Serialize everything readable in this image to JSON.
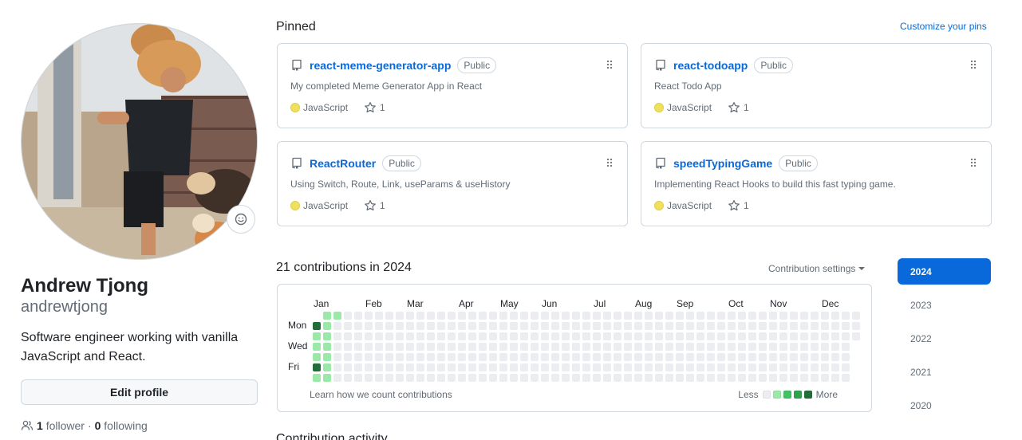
{
  "profile": {
    "full_name": "Andrew Tjong",
    "login": "andrewtjong",
    "bio": "Software engineer working with vanilla JavaScript and React.",
    "edit_label": "Edit profile",
    "followers_count": "1",
    "followers_label": "follower",
    "separator": "·",
    "following_count": "0",
    "following_label": "following"
  },
  "pinned": {
    "title": "Pinned",
    "customize_label": "Customize your pins",
    "repos": [
      {
        "name": "react-meme-generator-app",
        "visibility": "Public",
        "description": "My completed Meme Generator App in React",
        "language": "JavaScript",
        "stars": "1"
      },
      {
        "name": "react-todoapp",
        "visibility": "Public",
        "description": "React Todo App",
        "language": "JavaScript",
        "stars": "1"
      },
      {
        "name": "ReactRouter",
        "visibility": "Public",
        "description": "Using Switch, Route, Link, useParams & useHistory",
        "language": "JavaScript",
        "stars": "1"
      },
      {
        "name": "speedTypingGame",
        "visibility": "Public",
        "description": "Implementing React Hooks to build this fast typing game.",
        "language": "JavaScript",
        "stars": "1"
      }
    ],
    "language_color": "#f1e05a"
  },
  "contributions": {
    "title": "21 contributions in 2024",
    "settings_label": "Contribution settings",
    "months": [
      "Jan",
      "Feb",
      "Mar",
      "Apr",
      "May",
      "Jun",
      "Jul",
      "Aug",
      "Sep",
      "Oct",
      "Nov",
      "Dec"
    ],
    "weekdays": [
      "Mon",
      "Wed",
      "Fri"
    ],
    "learn_label": "Learn how we count contributions",
    "legend_less": "Less",
    "legend_more": "More",
    "level_colors": [
      "#ebedf0",
      "#9be9a8",
      "#40c463",
      "#30a14e",
      "#216e39"
    ],
    "weeks": 53,
    "year_starts_on_weekday": 1,
    "days_in_year": 366,
    "active_days": [
      {
        "week": 0,
        "day": 1,
        "level": 4
      },
      {
        "week": 0,
        "day": 2,
        "level": 1
      },
      {
        "week": 0,
        "day": 3,
        "level": 1
      },
      {
        "week": 0,
        "day": 4,
        "level": 1
      },
      {
        "week": 0,
        "day": 5,
        "level": 4
      },
      {
        "week": 0,
        "day": 6,
        "level": 1
      },
      {
        "week": 1,
        "day": 0,
        "level": 1
      },
      {
        "week": 1,
        "day": 1,
        "level": 1
      },
      {
        "week": 1,
        "day": 2,
        "level": 1
      },
      {
        "week": 1,
        "day": 3,
        "level": 1
      },
      {
        "week": 1,
        "day": 4,
        "level": 1
      },
      {
        "week": 1,
        "day": 5,
        "level": 1
      },
      {
        "week": 1,
        "day": 6,
        "level": 1
      },
      {
        "week": 2,
        "day": 0,
        "level": 1
      }
    ]
  },
  "years": [
    "2024",
    "2023",
    "2022",
    "2021",
    "2020"
  ],
  "active_year": "2024",
  "activity_title": "Contribution activity",
  "colors": {
    "accent": "#0969da",
    "muted": "#636c76",
    "border": "#d0d7de"
  }
}
